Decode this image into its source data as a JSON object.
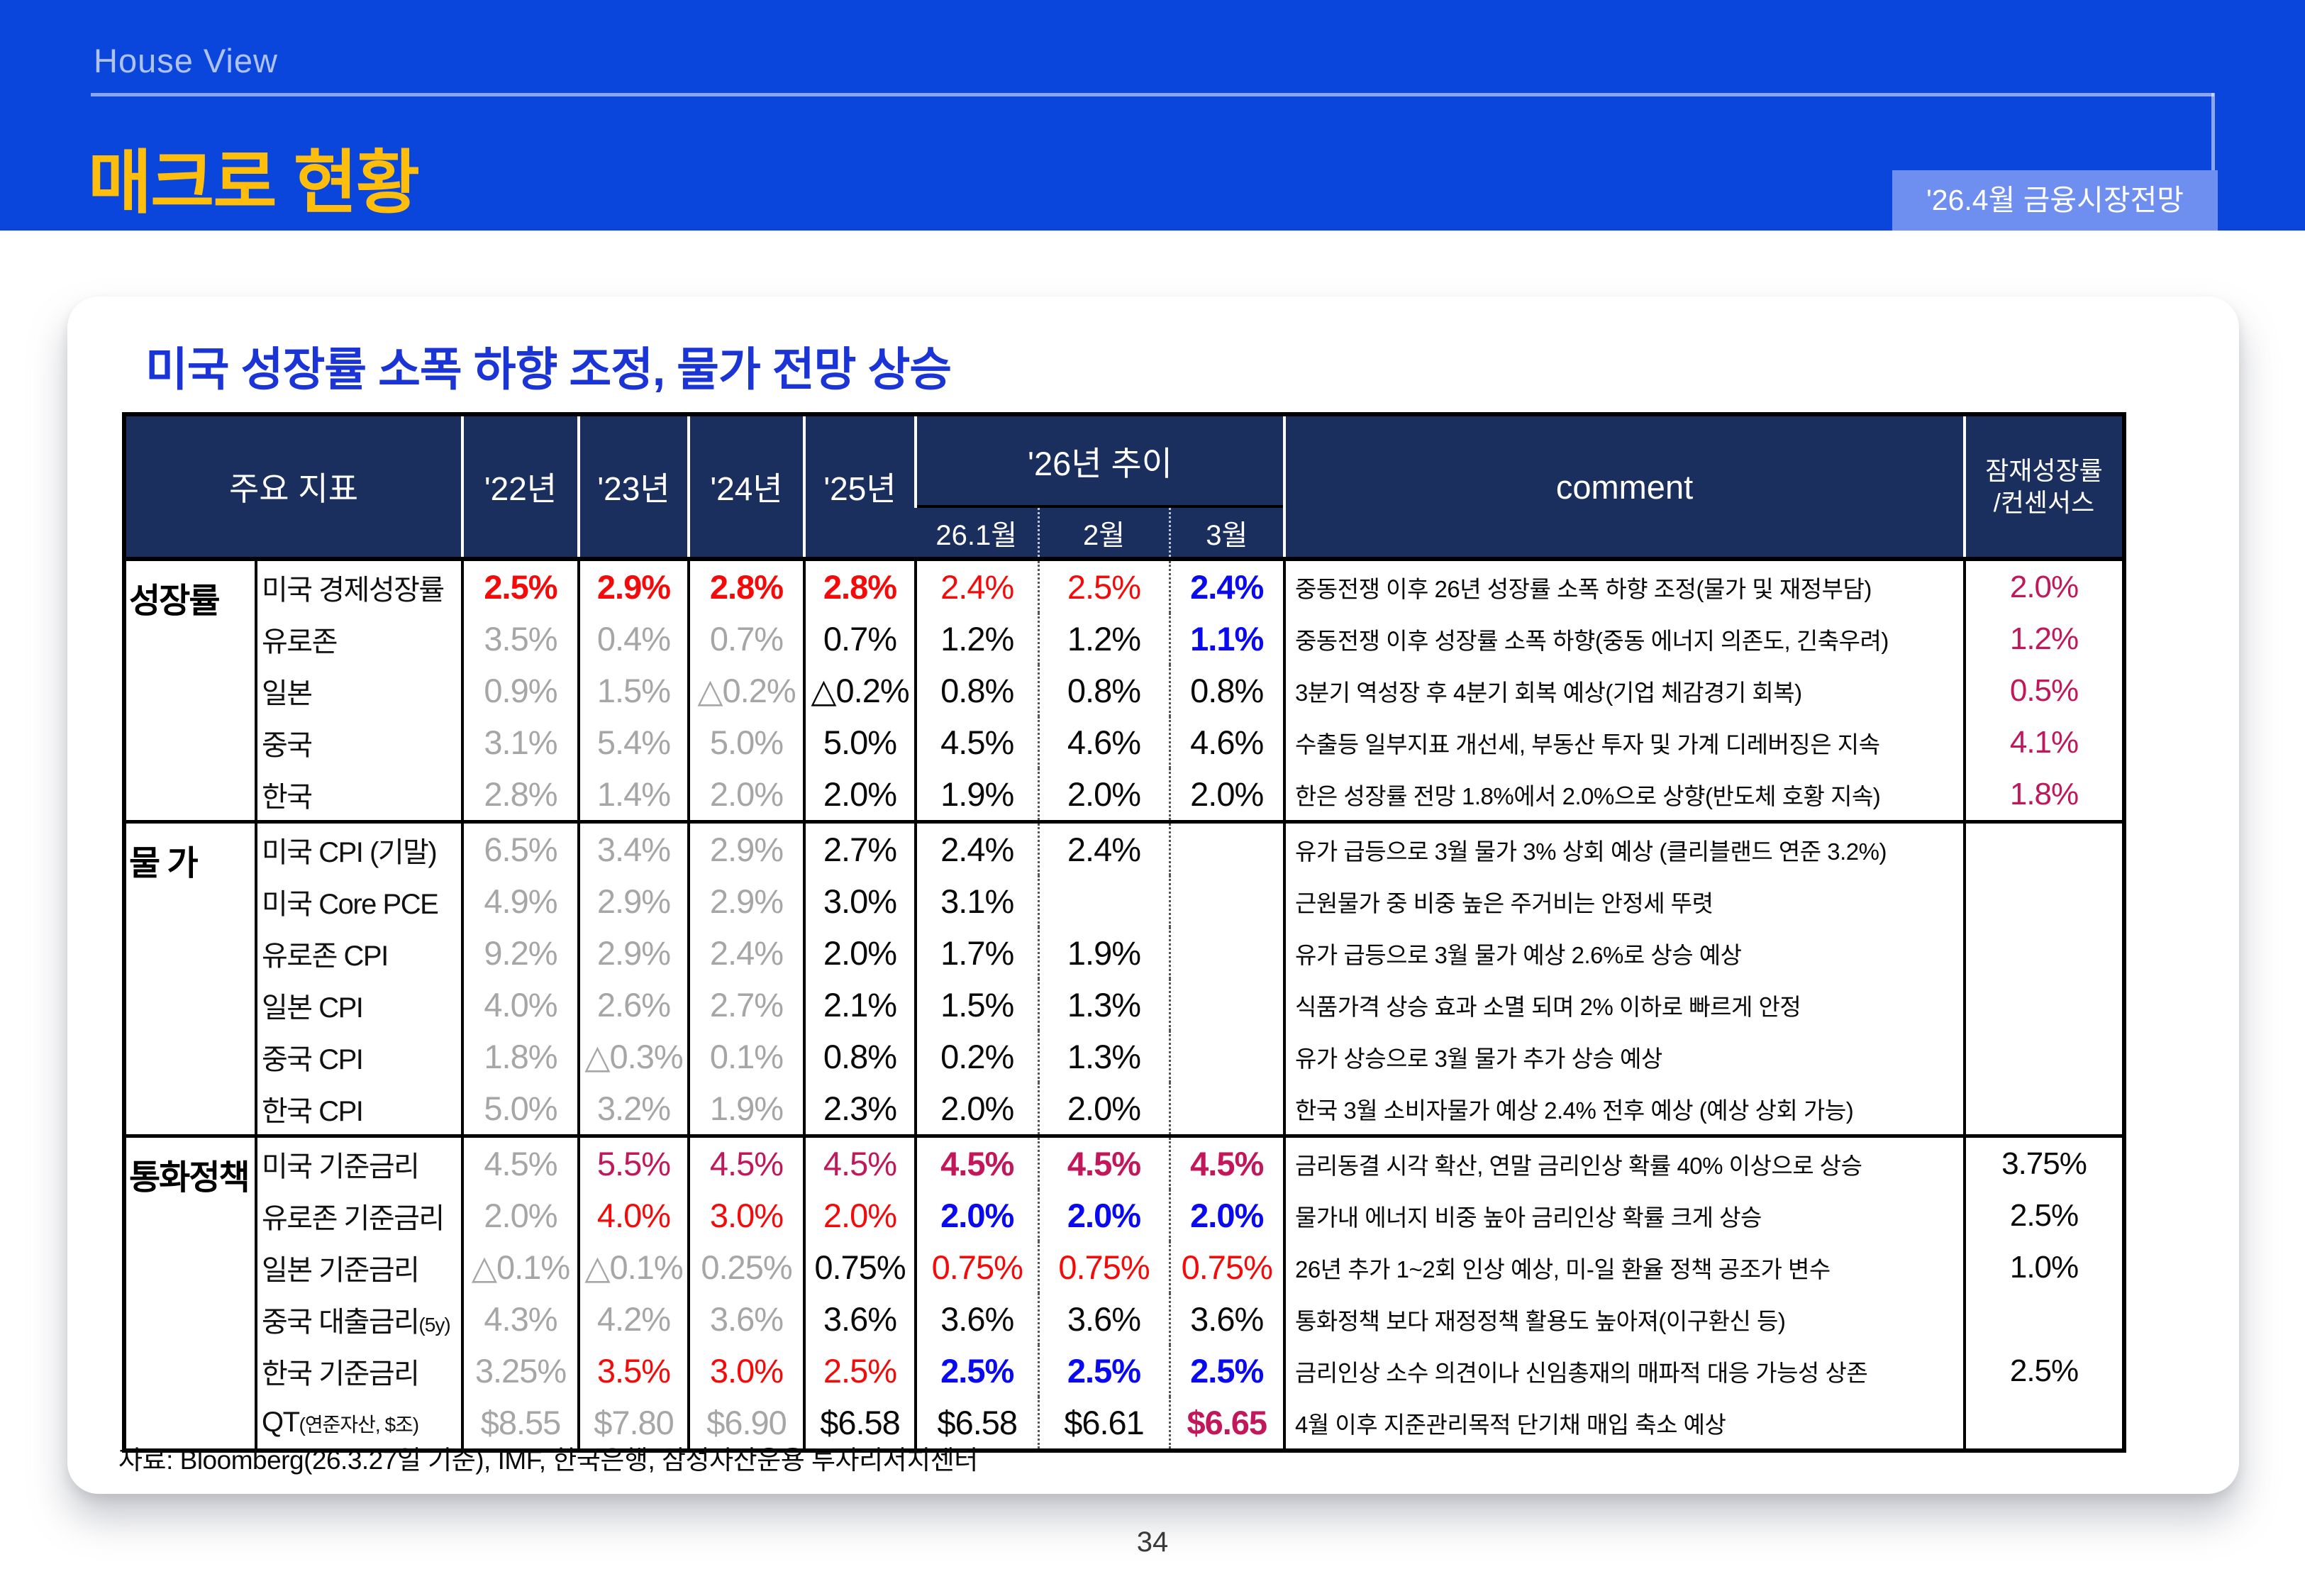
{
  "header": {
    "eyebrow": "House View",
    "title": "매크로 현황",
    "badge": "'26.4월 금융시장전망"
  },
  "card": {
    "title": "미국 성장률 소폭 하향 조정, 물가 전망 상승",
    "source": "자료: Bloomberg(26.3.27일 기준), IMF, 한국은행, 삼성자산운용 투자리서치센터"
  },
  "page_number": "34",
  "colors": {
    "band_blue": "#0B46DC",
    "badge_blue": "#6F8FF0",
    "title_yellow": "#FFBE0B",
    "card_title_blue": "#1A34D6",
    "table_header_navy": "#1B2F5F",
    "value_gray": "#A6A6A6",
    "value_red": "#F50A0A",
    "value_blue": "#0A0AF0",
    "value_crimson": "#C2175B"
  },
  "table": {
    "headers": {
      "main": "주요 지표",
      "years": [
        "'22년",
        "'23년",
        "'24년",
        "'25년"
      ],
      "trend": "'26년 추이",
      "months": [
        "26.1월",
        "2월",
        "3월"
      ],
      "comment": "comment",
      "consensus": "잠재성장률\n/컨센서스"
    },
    "sections": [
      {
        "label": "성장률",
        "rows": [
          {
            "name": "미국 경제성장률",
            "values": [
              [
                "2.5%",
                "rb"
              ],
              [
                "2.9%",
                "rb"
              ],
              [
                "2.8%",
                "rb"
              ],
              [
                "2.8%",
                "rb"
              ],
              [
                "2.4%",
                "r"
              ],
              [
                "2.5%",
                "r"
              ],
              [
                "2.4%",
                "b"
              ]
            ],
            "comment": "중동전쟁 이후 26년 성장률 소폭 하향 조정(물가 및 재정부담)",
            "consensus": [
              "2.0%",
              "c"
            ]
          },
          {
            "name": "유로존",
            "values": [
              [
                "3.5%",
                "g"
              ],
              [
                "0.4%",
                "g"
              ],
              [
                "0.7%",
                "g"
              ],
              [
                "0.7%",
                "k"
              ],
              [
                "1.2%",
                "k"
              ],
              [
                "1.2%",
                "k"
              ],
              [
                "1.1%",
                "b"
              ]
            ],
            "comment": "중동전쟁 이후 성장률 소폭 하향(중동 에너지 의존도, 긴축우려)",
            "consensus": [
              "1.2%",
              "c"
            ]
          },
          {
            "name": "일본",
            "values": [
              [
                "0.9%",
                "g"
              ],
              [
                "1.5%",
                "g"
              ],
              [
                "△0.2%",
                "g"
              ],
              [
                "△0.2%",
                "k"
              ],
              [
                "0.8%",
                "k"
              ],
              [
                "0.8%",
                "k"
              ],
              [
                "0.8%",
                "k"
              ]
            ],
            "comment": "3분기 역성장 후 4분기 회복 예상(기업 체감경기 회복)",
            "consensus": [
              "0.5%",
              "c"
            ]
          },
          {
            "name": "중국",
            "values": [
              [
                "3.1%",
                "g"
              ],
              [
                "5.4%",
                "g"
              ],
              [
                "5.0%",
                "g"
              ],
              [
                "5.0%",
                "k"
              ],
              [
                "4.5%",
                "k"
              ],
              [
                "4.6%",
                "k"
              ],
              [
                "4.6%",
                "k"
              ]
            ],
            "comment": "수출등 일부지표 개선세, 부동산 투자 및 가계 디레버징은 지속",
            "consensus": [
              "4.1%",
              "c"
            ]
          },
          {
            "name": "한국",
            "values": [
              [
                "2.8%",
                "g"
              ],
              [
                "1.4%",
                "g"
              ],
              [
                "2.0%",
                "g"
              ],
              [
                "2.0%",
                "k"
              ],
              [
                "1.9%",
                "k"
              ],
              [
                "2.0%",
                "k"
              ],
              [
                "2.0%",
                "k"
              ]
            ],
            "comment": "한은 성장률 전망 1.8%에서 2.0%으로 상향(반도체 호황 지속)",
            "consensus": [
              "1.8%",
              "c"
            ]
          }
        ]
      },
      {
        "label": "물 가",
        "rows": [
          {
            "name": "미국 CPI (기말)",
            "values": [
              [
                "6.5%",
                "g"
              ],
              [
                "3.4%",
                "g"
              ],
              [
                "2.9%",
                "g"
              ],
              [
                "2.7%",
                "k"
              ],
              [
                "2.4%",
                "k"
              ],
              [
                "2.4%",
                "k"
              ],
              [
                "",
                ""
              ]
            ],
            "comment": "유가 급등으로 3월 물가 3% 상회 예상 (클리블랜드 연준 3.2%)",
            "consensus": [
              "",
              ""
            ]
          },
          {
            "name": "미국 Core PCE",
            "values": [
              [
                "4.9%",
                "g"
              ],
              [
                "2.9%",
                "g"
              ],
              [
                "2.9%",
                "g"
              ],
              [
                "3.0%",
                "k"
              ],
              [
                "3.1%",
                "k"
              ],
              [
                "",
                ""
              ],
              [
                "",
                ""
              ]
            ],
            "comment": "근원물가 중 비중 높은 주거비는 안정세 뚜렷",
            "consensus": [
              "",
              ""
            ]
          },
          {
            "name": "유로존 CPI",
            "values": [
              [
                "9.2%",
                "g"
              ],
              [
                "2.9%",
                "g"
              ],
              [
                "2.4%",
                "g"
              ],
              [
                "2.0%",
                "k"
              ],
              [
                "1.7%",
                "k"
              ],
              [
                "1.9%",
                "k"
              ],
              [
                "",
                ""
              ]
            ],
            "comment": "유가 급등으로 3월 물가 예상 2.6%로 상승 예상",
            "consensus": [
              "",
              ""
            ]
          },
          {
            "name": "일본 CPI",
            "values": [
              [
                "4.0%",
                "g"
              ],
              [
                "2.6%",
                "g"
              ],
              [
                "2.7%",
                "g"
              ],
              [
                "2.1%",
                "k"
              ],
              [
                "1.5%",
                "k"
              ],
              [
                "1.3%",
                "k"
              ],
              [
                "",
                ""
              ]
            ],
            "comment": "식품가격 상승 효과 소멸 되며 2% 이하로 빠르게 안정",
            "consensus": [
              "",
              ""
            ]
          },
          {
            "name": "중국 CPI",
            "values": [
              [
                "1.8%",
                "g"
              ],
              [
                "△0.3%",
                "g"
              ],
              [
                "0.1%",
                "g"
              ],
              [
                "0.8%",
                "k"
              ],
              [
                "0.2%",
                "k"
              ],
              [
                "1.3%",
                "k"
              ],
              [
                "",
                ""
              ]
            ],
            "comment": "유가 상승으로 3월 물가 추가 상승 예상",
            "consensus": [
              "",
              ""
            ]
          },
          {
            "name": "한국 CPI",
            "values": [
              [
                "5.0%",
                "g"
              ],
              [
                "3.2%",
                "g"
              ],
              [
                "1.9%",
                "g"
              ],
              [
                "2.3%",
                "k"
              ],
              [
                "2.0%",
                "k"
              ],
              [
                "2.0%",
                "k"
              ],
              [
                "",
                ""
              ]
            ],
            "comment": "한국 3월 소비자물가 예상 2.4% 전후 예상 (예상 상회 가능)",
            "consensus": [
              "",
              ""
            ]
          }
        ]
      },
      {
        "label": "통화정책",
        "rows": [
          {
            "name": "미국 기준금리",
            "values": [
              [
                "4.5%",
                "g"
              ],
              [
                "5.5%",
                "c"
              ],
              [
                "4.5%",
                "c"
              ],
              [
                "4.5%",
                "c"
              ],
              [
                "4.5%",
                "cb"
              ],
              [
                "4.5%",
                "cb"
              ],
              [
                "4.5%",
                "cb"
              ]
            ],
            "comment": "금리동결 시각 확산, 연말 금리인상 확률 40% 이상으로 상승",
            "consensus": [
              "3.75%",
              "k"
            ]
          },
          {
            "name": "유로존 기준금리",
            "values": [
              [
                "2.0%",
                "g"
              ],
              [
                "4.0%",
                "r"
              ],
              [
                "3.0%",
                "r"
              ],
              [
                "2.0%",
                "r"
              ],
              [
                "2.0%",
                "b"
              ],
              [
                "2.0%",
                "b"
              ],
              [
                "2.0%",
                "b"
              ]
            ],
            "comment": "물가내 에너지 비중 높아 금리인상 확률 크게 상승",
            "consensus": [
              "2.5%",
              "k"
            ]
          },
          {
            "name": "일본 기준금리",
            "values": [
              [
                "△0.1%",
                "g"
              ],
              [
                "△0.1%",
                "g"
              ],
              [
                "0.25%",
                "g"
              ],
              [
                "0.75%",
                "k"
              ],
              [
                "0.75%",
                "r"
              ],
              [
                "0.75%",
                "r"
              ],
              [
                "0.75%",
                "r"
              ]
            ],
            "comment": "26년 추가 1~2회 인상 예상, 미-일 환율 정책 공조가 변수",
            "consensus": [
              "1.0%",
              "k"
            ]
          },
          {
            "name": "중국 대출금리",
            "sub": "(5y)",
            "values": [
              [
                "4.3%",
                "g"
              ],
              [
                "4.2%",
                "g"
              ],
              [
                "3.6%",
                "g"
              ],
              [
                "3.6%",
                "k"
              ],
              [
                "3.6%",
                "k"
              ],
              [
                "3.6%",
                "k"
              ],
              [
                "3.6%",
                "k"
              ]
            ],
            "comment": "통화정책 보다 재정정책 활용도 높아져(이구환신 등)",
            "consensus": [
              "",
              ""
            ]
          },
          {
            "name": "한국 기준금리",
            "values": [
              [
                "3.25%",
                "g"
              ],
              [
                "3.5%",
                "r"
              ],
              [
                "3.0%",
                "r"
              ],
              [
                "2.5%",
                "r"
              ],
              [
                "2.5%",
                "b"
              ],
              [
                "2.5%",
                "b"
              ],
              [
                "2.5%",
                "b"
              ]
            ],
            "comment": "금리인상 소수 의견이나 신임총재의 매파적 대응 가능성 상존",
            "consensus": [
              "2.5%",
              "k"
            ]
          },
          {
            "name": "QT",
            "sub": "(연준자산, $조)",
            "values": [
              [
                "$8.55",
                "g"
              ],
              [
                "$7.80",
                "g"
              ],
              [
                "$6.90",
                "g"
              ],
              [
                "$6.58",
                "k"
              ],
              [
                "$6.58",
                "k"
              ],
              [
                "$6.61",
                "k"
              ],
              [
                "$6.65",
                "cb"
              ]
            ],
            "comment": "4월 이후 지준관리목적 단기채 매입 축소 예상",
            "consensus": [
              "",
              ""
            ]
          }
        ]
      }
    ]
  }
}
